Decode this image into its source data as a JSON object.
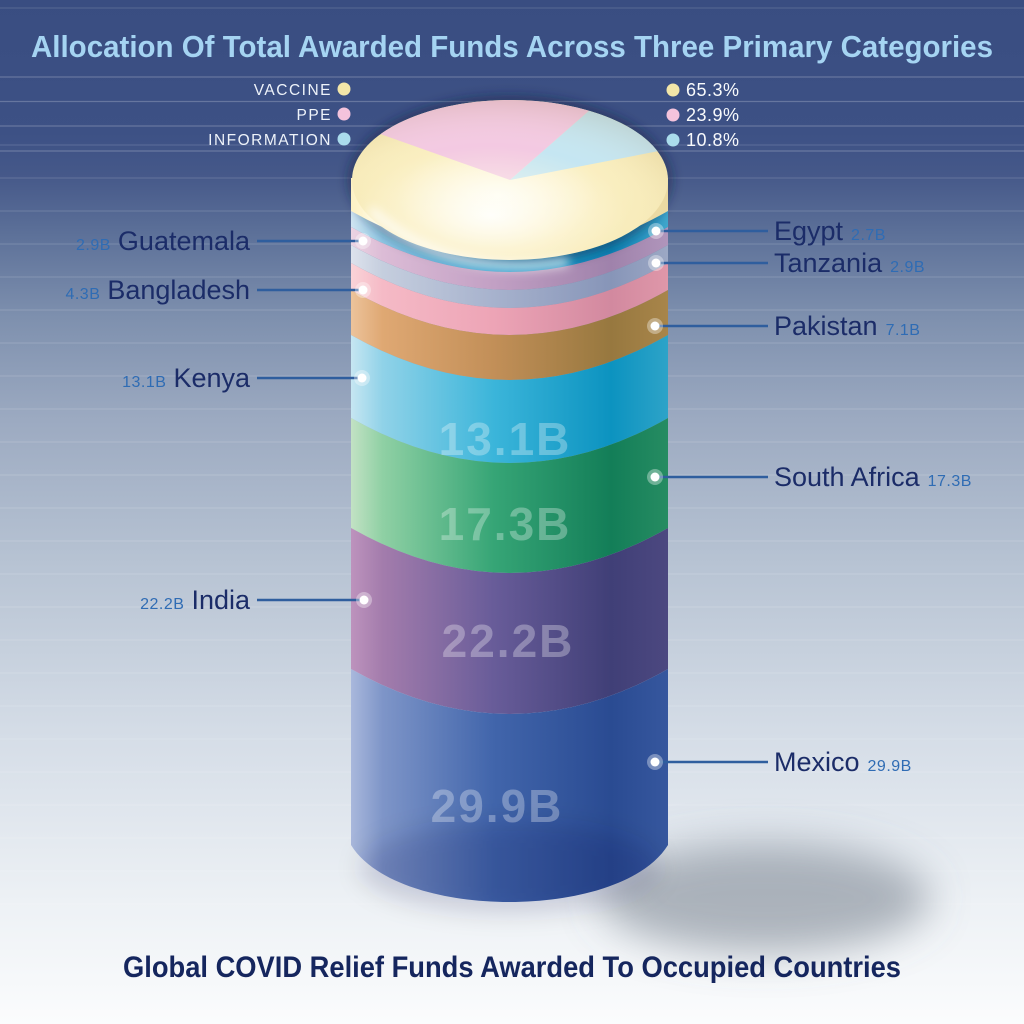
{
  "header": {
    "title": "Allocation Of Total Awarded Funds Across Three Primary Categories"
  },
  "footer": {
    "title": "Global COVID Relief Funds Awarded To Occupied Countries"
  },
  "legend": {
    "items": [
      {
        "label": "VACCINE",
        "value": "65.3%",
        "color": "#f2e6a8"
      },
      {
        "label": "PPE",
        "value": "23.9%",
        "color": "#f4c3dc"
      },
      {
        "label": "INFORMATION",
        "value": "10.8%",
        "color": "#aadcec"
      }
    ]
  },
  "cylinder": {
    "segments": [
      {
        "country": "Egypt",
        "value_label": "2.7B",
        "side": "right",
        "color": "#2fa3d0"
      },
      {
        "country": "Guatemala",
        "value_label": "2.9B",
        "side": "left",
        "color": "#c2a0c4"
      },
      {
        "country": "Tanzania",
        "value_label": "2.9B",
        "side": "right",
        "color": "#a7b2cd"
      },
      {
        "country": "Bangladesh",
        "value_label": "4.3B",
        "side": "left",
        "color": "#eda4b6"
      },
      {
        "country": "Pakistan",
        "value_label": "7.1B",
        "side": "right",
        "color": "#c28f58"
      },
      {
        "country": "Kenya",
        "value_label": "13.1B",
        "side": "left",
        "color": "#3bb5da"
      },
      {
        "country": "South Africa",
        "value_label": "17.3B",
        "side": "right",
        "color": "#36a576"
      },
      {
        "country": "India",
        "value_label": "22.2B",
        "side": "left",
        "color": "#685c99"
      },
      {
        "country": "Mexico",
        "value_label": "29.9B",
        "side": "right",
        "color": "#4165ab"
      }
    ]
  },
  "chart_data": [
    {
      "type": "pie",
      "title": "Allocation Of Total Awarded Funds Across Three Primary Categories",
      "labels": [
        "VACCINE",
        "PPE",
        "INFORMATION"
      ],
      "values": [
        65.3,
        23.9,
        10.8
      ],
      "unit": "%",
      "colors": [
        "#f7ecba",
        "#f3c9e2",
        "#c5e6f2"
      ],
      "legend_position": "top"
    },
    {
      "type": "bar",
      "subtype": "stacked-cylinder",
      "title": "Global COVID Relief Funds Awarded To Occupied Countries",
      "categories": [
        "Egypt",
        "Guatemala",
        "Tanzania",
        "Bangladesh",
        "Pakistan",
        "Kenya",
        "South Africa",
        "India",
        "Mexico"
      ],
      "values": [
        2.7,
        2.9,
        2.9,
        4.3,
        7.1,
        13.1,
        17.3,
        22.2,
        29.9
      ],
      "unit": "B",
      "order": "smallest value at top of cylinder"
    }
  ]
}
